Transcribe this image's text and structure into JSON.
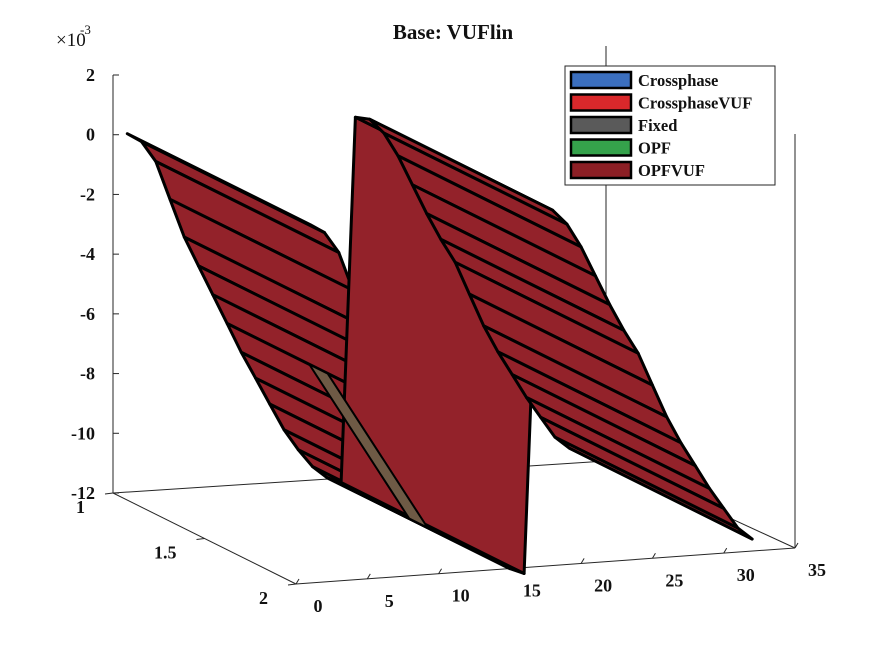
{
  "chart_data": {
    "type": "3d-ribbon",
    "title": "Base: VUFlin",
    "z_exponent_label": "×10",
    "z_exponent_power": "-3",
    "x_ticks": [
      "0",
      "5",
      "10",
      "15",
      "20",
      "25",
      "30",
      "35"
    ],
    "y_ticks": [
      "1",
      "1.5",
      "2"
    ],
    "z_ticks": [
      "2",
      "0",
      "-2",
      "-4",
      "-6",
      "-8",
      "-10",
      "-12"
    ],
    "xlim": [
      0,
      35
    ],
    "ylim": [
      1,
      2
    ],
    "zlim": [
      -12,
      2
    ],
    "grid": false,
    "legend_position": "top-right",
    "legend": [
      {
        "label": "Crossphase",
        "color": "#3b6fbf"
      },
      {
        "label": "CrossphaseVUF",
        "color": "#d9282b"
      },
      {
        "label": "Fixed",
        "color": "#5a5a5a"
      },
      {
        "label": "OPF",
        "color": "#35a24b"
      },
      {
        "label": "OPFVUF",
        "color": "#8c1f25"
      }
    ],
    "surface_color": "#93222a",
    "fixed_color": "#6e5a45",
    "series": [
      {
        "name": "OPFVUF",
        "x": [
          1,
          2,
          3,
          4,
          5,
          6,
          7,
          8,
          9,
          10,
          11,
          12,
          13,
          14,
          15,
          16,
          17,
          18,
          19,
          20,
          21,
          22,
          23,
          24,
          25,
          26,
          27,
          28,
          29,
          30,
          31,
          32
        ],
        "values": [
          0.0,
          -0.3,
          -1.0,
          -2.3,
          -3.6,
          -4.6,
          -5.6,
          -6.6,
          -7.6,
          -8.5,
          -9.4,
          -10.3,
          -11.0,
          -11.6,
          -12.0,
          -12.2,
          0.0,
          -0.1,
          -0.6,
          -1.4,
          -2.4,
          -3.4,
          -4.3,
          -5.1,
          -6.2,
          -7.3,
          -8.2,
          -9.0,
          -9.8,
          -10.5,
          -11.2,
          -11.6
        ]
      }
    ]
  }
}
